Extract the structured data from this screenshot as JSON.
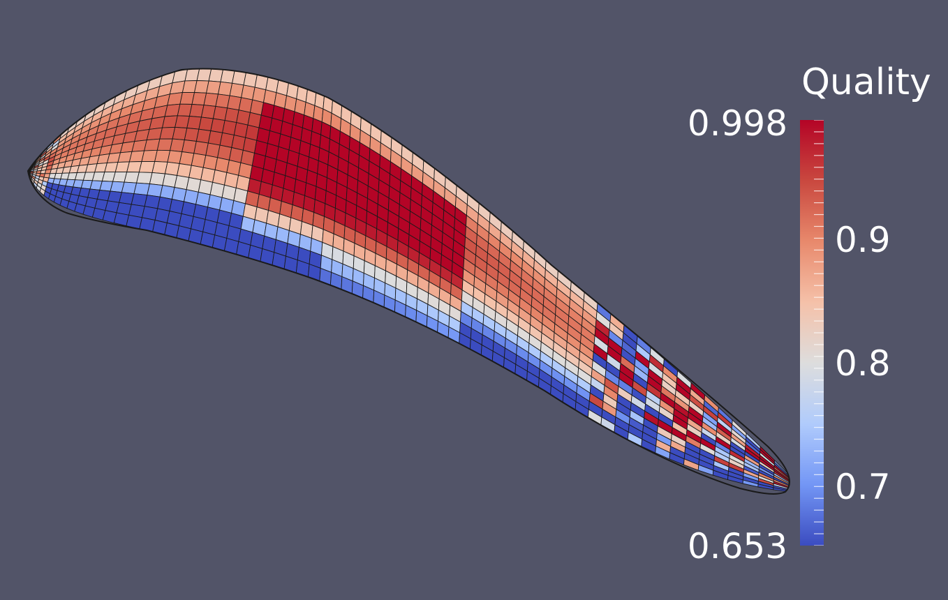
{
  "scalar_bar": {
    "title": "Quality",
    "min_label": "0.653",
    "max_label": "0.998",
    "range": [
      0.653,
      0.998
    ],
    "ticks": [
      {
        "value": 0.9,
        "label": "0.9"
      },
      {
        "value": 0.8,
        "label": "0.8"
      },
      {
        "value": 0.7,
        "label": "0.7"
      }
    ],
    "colormap": [
      "#3b4cc0",
      "#7396f5",
      "#b0cbfc",
      "#dddddd",
      "#f5c1a9",
      "#e8896c",
      "#c9483f",
      "#b40426"
    ]
  },
  "colors": {
    "background": "#525468",
    "mesh_edge": "#1a1a1a",
    "text": "#ffffff"
  }
}
